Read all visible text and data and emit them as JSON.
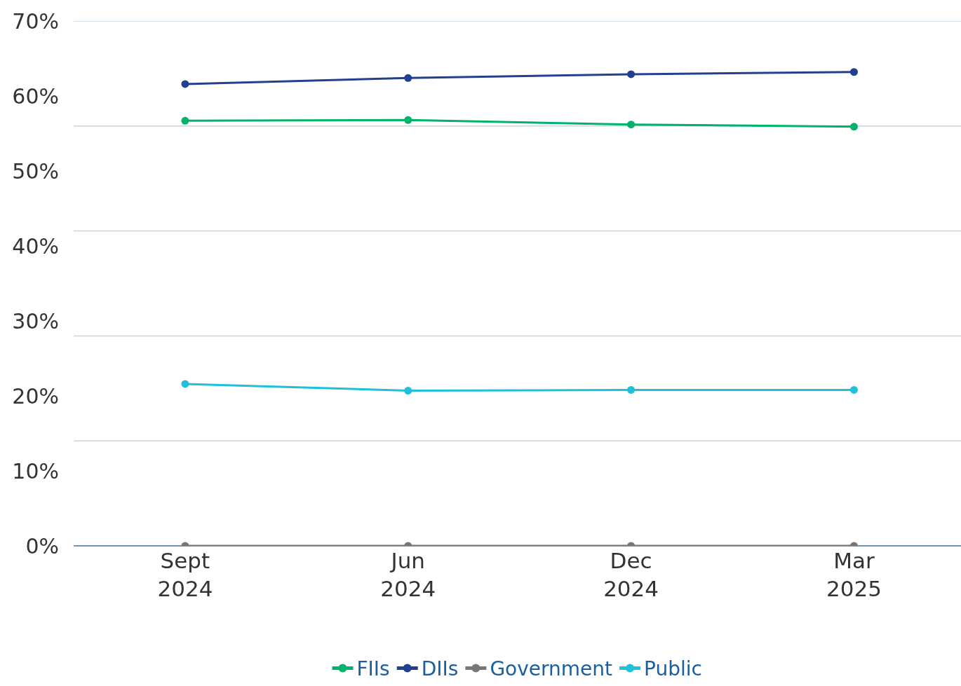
{
  "chart_data": {
    "type": "line",
    "categories": [
      "Sept 2024",
      "Jun 2024",
      "Dec 2024",
      "Mar 2025"
    ],
    "series": [
      {
        "name": "FIIs",
        "color": "#00b26b",
        "values": [
          56.7,
          56.8,
          56.2,
          55.9
        ]
      },
      {
        "name": "DIIs",
        "color": "#233f8f",
        "values": [
          61.6,
          62.4,
          62.9,
          63.2
        ]
      },
      {
        "name": "Government",
        "color": "#777777",
        "values": [
          0,
          0,
          0,
          0
        ]
      },
      {
        "name": "Public",
        "color": "#22bfdc",
        "values": [
          21.6,
          20.7,
          20.8,
          20.8
        ]
      }
    ],
    "ylim": [
      0,
      70
    ],
    "yticks": [
      {
        "value": 0,
        "label": "0%"
      },
      {
        "value": 10,
        "label": "10%"
      },
      {
        "value": 14,
        "label": null
      },
      {
        "value": 20,
        "label": "20%"
      },
      {
        "value": 28,
        "label": null
      },
      {
        "value": 30,
        "label": "30%"
      },
      {
        "value": 40,
        "label": "40%"
      },
      {
        "value": 42,
        "label": null
      },
      {
        "value": 50,
        "label": "50%"
      },
      {
        "value": 56,
        "label": null
      },
      {
        "value": 60,
        "label": "60%"
      },
      {
        "value": 70,
        "label": "70%"
      }
    ],
    "grid": "y",
    "legend": "bottom",
    "marker": "circle",
    "line_style": "solid"
  }
}
